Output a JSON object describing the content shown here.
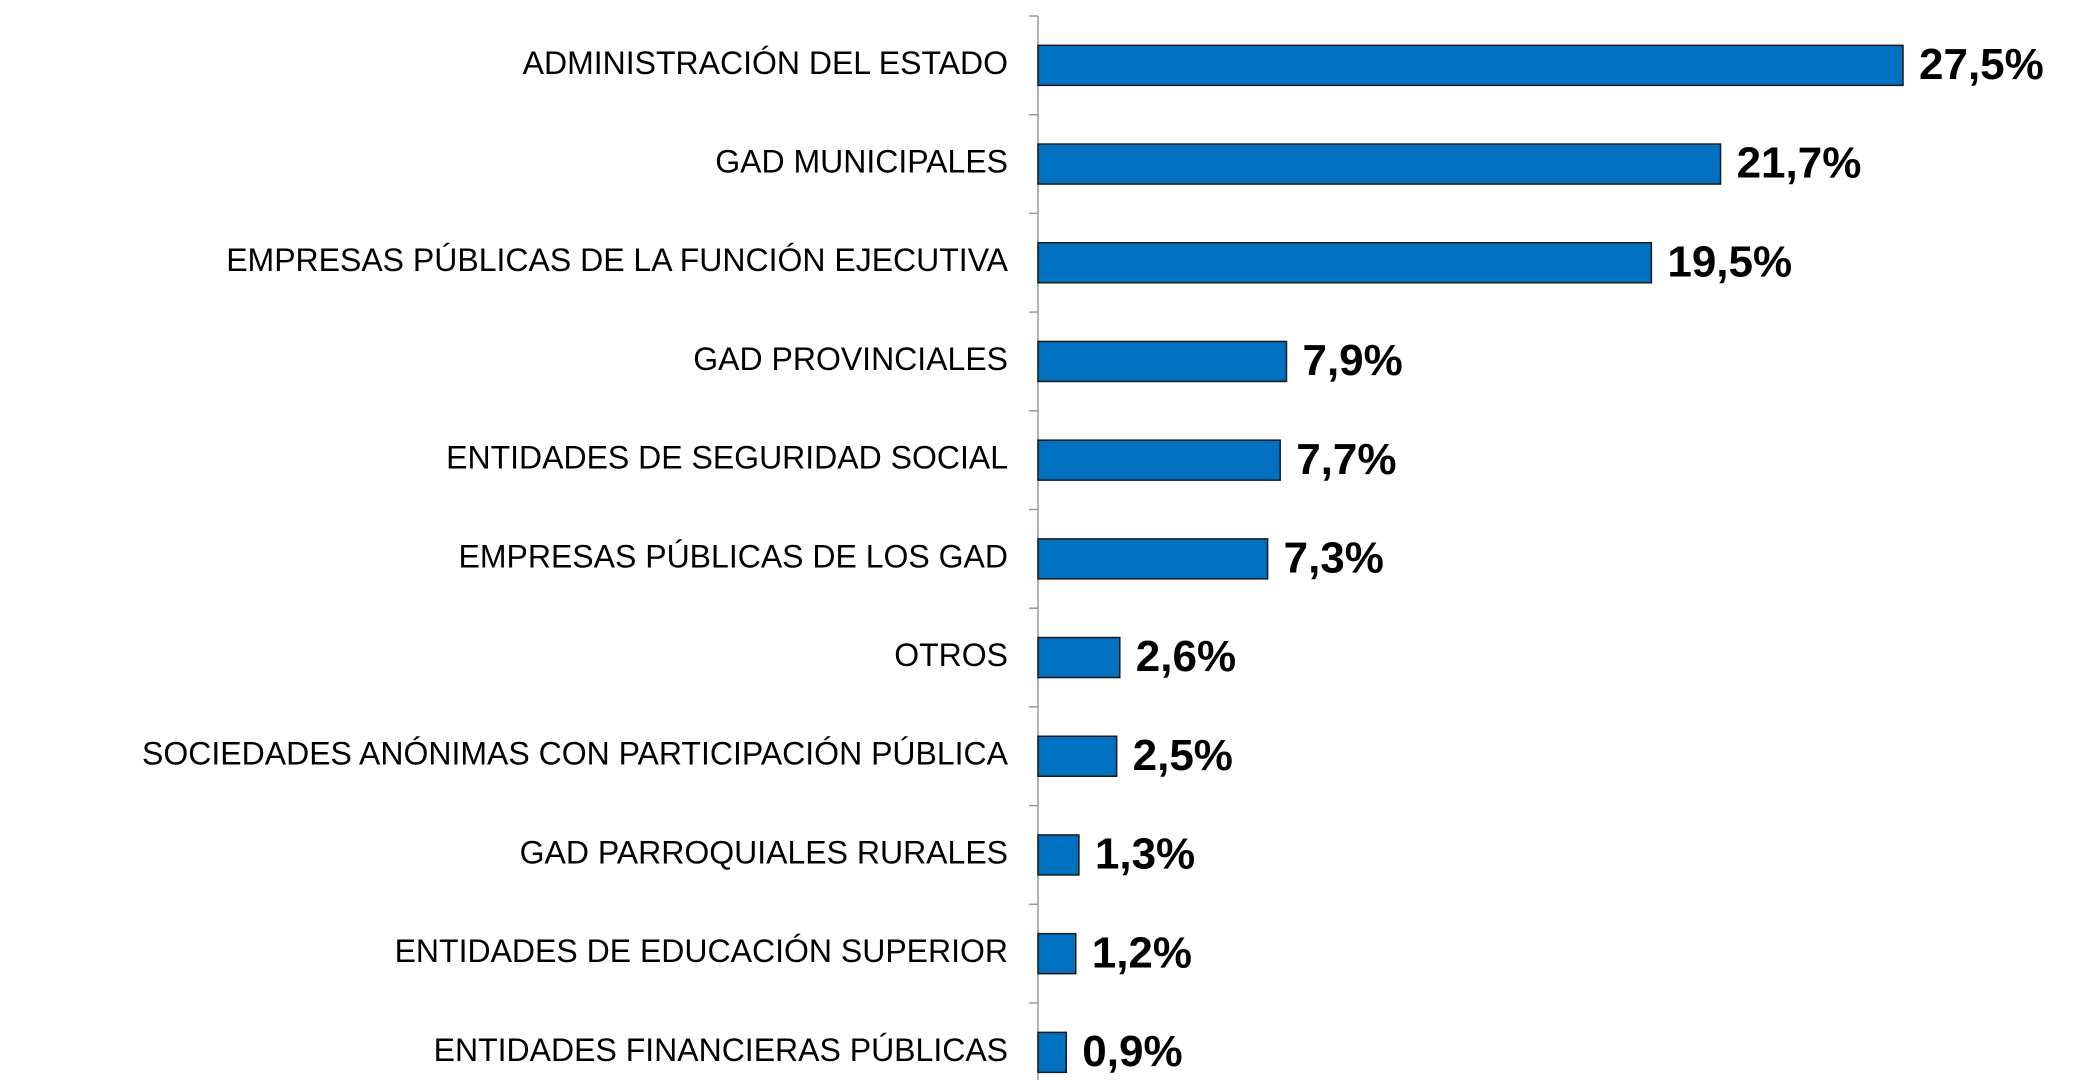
{
  "chart_data": {
    "type": "bar",
    "orientation": "horizontal",
    "categories": [
      "ADMINISTRACIÓN DEL ESTADO",
      "GAD MUNICIPALES",
      "EMPRESAS PÚBLICAS DE LA FUNCIÓN EJECUTIVA",
      "GAD PROVINCIALES",
      "ENTIDADES DE SEGURIDAD SOCIAL",
      "EMPRESAS PÚBLICAS DE LOS GAD",
      "OTROS",
      "SOCIEDADES ANÓNIMAS CON PARTICIPACIÓN PÚBLICA",
      "GAD PARROQUIALES RURALES",
      "ENTIDADES DE EDUCACIÓN SUPERIOR",
      "ENTIDADES FINANCIERAS PÚBLICAS"
    ],
    "values": [
      27.5,
      21.7,
      19.5,
      7.9,
      7.7,
      7.3,
      2.6,
      2.5,
      1.3,
      1.2,
      0.9
    ],
    "value_labels": [
      "27,5%",
      "21,7%",
      "19,5%",
      "7,9%",
      "7,7%",
      "7,3%",
      "2,6%",
      "2,5%",
      "1,3%",
      "1,2%",
      "0,9%"
    ],
    "color": "#0070c0"
  }
}
